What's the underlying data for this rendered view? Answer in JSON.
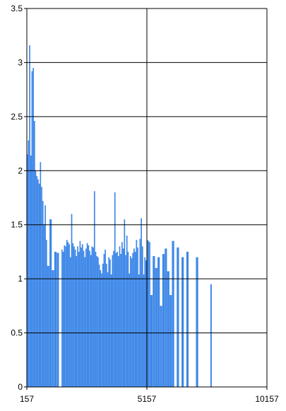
{
  "chart_data": {
    "type": "bar",
    "title": "",
    "xlabel": "",
    "ylabel": "",
    "xlim": [
      157,
      10157
    ],
    "ylim": [
      0,
      3.5
    ],
    "x_ticks": [
      "157",
      "5157",
      "10157"
    ],
    "y_ticks": [
      "0",
      "0.5",
      "1",
      "1.5",
      "2",
      "2.5",
      "3",
      "3.5"
    ],
    "grid": true,
    "legend": "none",
    "bar_color": "#3f88e8",
    "gridline_color": "#000000",
    "series": [
      {
        "x": [
          157,
          200,
          250,
          300,
          350,
          400,
          450,
          500,
          550,
          600,
          650,
          700,
          750,
          800,
          850,
          900,
          950,
          1000,
          1100,
          1200,
          1300,
          1400,
          1600,
          1650,
          1700,
          1750,
          1800,
          1850,
          1900,
          1950,
          2000,
          2050,
          2100,
          2150,
          2200,
          2250,
          2300,
          2350,
          2400,
          2450,
          2500,
          2550,
          2600,
          2650,
          2700,
          2750,
          2800,
          2850,
          2900,
          2950,
          3000,
          3050,
          3100,
          3150,
          3200,
          3250,
          3300,
          3350,
          3400,
          3450,
          3500,
          3550,
          3600,
          3650,
          3700,
          3750,
          3800,
          3850,
          3900,
          3950,
          4000,
          4050,
          4100,
          4150,
          4200,
          4250,
          4300,
          4350,
          4400,
          4450,
          4500,
          4550,
          4600,
          4650,
          4700,
          4750,
          4800,
          4850,
          4900,
          4950,
          5000,
          5050,
          5100,
          5150,
          5200,
          5250,
          5300,
          5400,
          5500,
          5600,
          5700,
          5800,
          5900,
          6000,
          6100,
          6200,
          6400,
          6600,
          6800,
          7200,
          7800
        ],
        "values": [
          2.15,
          2.28,
          3.16,
          2.14,
          2.92,
          2.95,
          2.46,
          2.0,
          1.95,
          1.92,
          1.88,
          2.08,
          1.85,
          1.72,
          1.5,
          1.68,
          1.36,
          1.12,
          1.55,
          1.08,
          1.25,
          1.24,
          1.27,
          1.25,
          1.31,
          1.3,
          1.36,
          1.34,
          1.32,
          1.2,
          1.6,
          1.33,
          1.3,
          1.27,
          1.21,
          1.3,
          1.25,
          1.35,
          1.29,
          1.32,
          1.26,
          1.2,
          1.28,
          1.33,
          1.31,
          1.26,
          1.22,
          1.3,
          1.29,
          1.81,
          1.25,
          1.21,
          1.2,
          1.13,
          1.08,
          1.05,
          1.14,
          1.23,
          1.27,
          1.14,
          1.06,
          1.2,
          1.18,
          1.04,
          1.22,
          1.26,
          1.8,
          1.24,
          1.25,
          1.21,
          1.3,
          1.23,
          1.34,
          1.28,
          1.55,
          1.22,
          1.4,
          1.25,
          1.05,
          1.21,
          1.19,
          1.24,
          1.28,
          1.25,
          1.36,
          1.29,
          1.04,
          1.37,
          1.56,
          1.3,
          1.04,
          1.2,
          1.17,
          1.36,
          1.35,
          1.34,
          0.85,
          1.21,
          1.1,
          1.2,
          0.75,
          1.23,
          1.28,
          1.07,
          0.85,
          1.35,
          1.29,
          1.2,
          1.25,
          1.2,
          0.95
        ]
      }
    ]
  }
}
